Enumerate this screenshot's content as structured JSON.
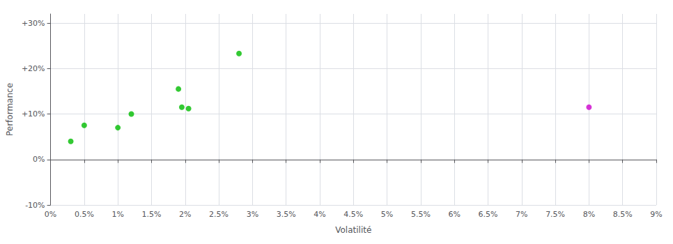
{
  "chart_data": {
    "type": "scatter",
    "xlabel": "Volatilité",
    "ylabel": "Performance",
    "marker": "circle",
    "grid": true,
    "xlim": [
      0.0,
      0.09
    ],
    "ylim": [
      -0.1,
      0.32
    ],
    "xticks": [
      {
        "value": 0.0,
        "label": "0%"
      },
      {
        "value": 0.005,
        "label": "0.5%"
      },
      {
        "value": 0.01,
        "label": "1%"
      },
      {
        "value": 0.015,
        "label": "1.5%"
      },
      {
        "value": 0.02,
        "label": "2%"
      },
      {
        "value": 0.025,
        "label": "2.5%"
      },
      {
        "value": 0.03,
        "label": "3%"
      },
      {
        "value": 0.035,
        "label": "3.5%"
      },
      {
        "value": 0.04,
        "label": "4%"
      },
      {
        "value": 0.045,
        "label": "4.5%"
      },
      {
        "value": 0.05,
        "label": "5%"
      },
      {
        "value": 0.055,
        "label": "5.5%"
      },
      {
        "value": 0.06,
        "label": "6%"
      },
      {
        "value": 0.065,
        "label": "6.5%"
      },
      {
        "value": 0.07,
        "label": "7%"
      },
      {
        "value": 0.075,
        "label": "7.5%"
      },
      {
        "value": 0.08,
        "label": "8%"
      },
      {
        "value": 0.085,
        "label": "8.5%"
      },
      {
        "value": 0.09,
        "label": "9%"
      }
    ],
    "yticks": [
      {
        "value": -0.1,
        "label": "-10%"
      },
      {
        "value": 0.0,
        "label": "0%"
      },
      {
        "value": 0.1,
        "label": "+10%"
      },
      {
        "value": 0.2,
        "label": "+20%"
      },
      {
        "value": 0.3,
        "label": "+30%"
      }
    ],
    "series": [
      {
        "color": "#00bb00",
        "x": [
          0.003,
          0.005,
          0.01,
          0.012,
          0.019,
          0.0195,
          0.0205,
          0.028
        ],
        "y": [
          0.04,
          0.075,
          0.07,
          0.1,
          0.155,
          0.115,
          0.112,
          0.233
        ]
      },
      {
        "color": "#cc00cc",
        "x": [
          0.08
        ],
        "y": [
          0.115
        ]
      }
    ]
  }
}
